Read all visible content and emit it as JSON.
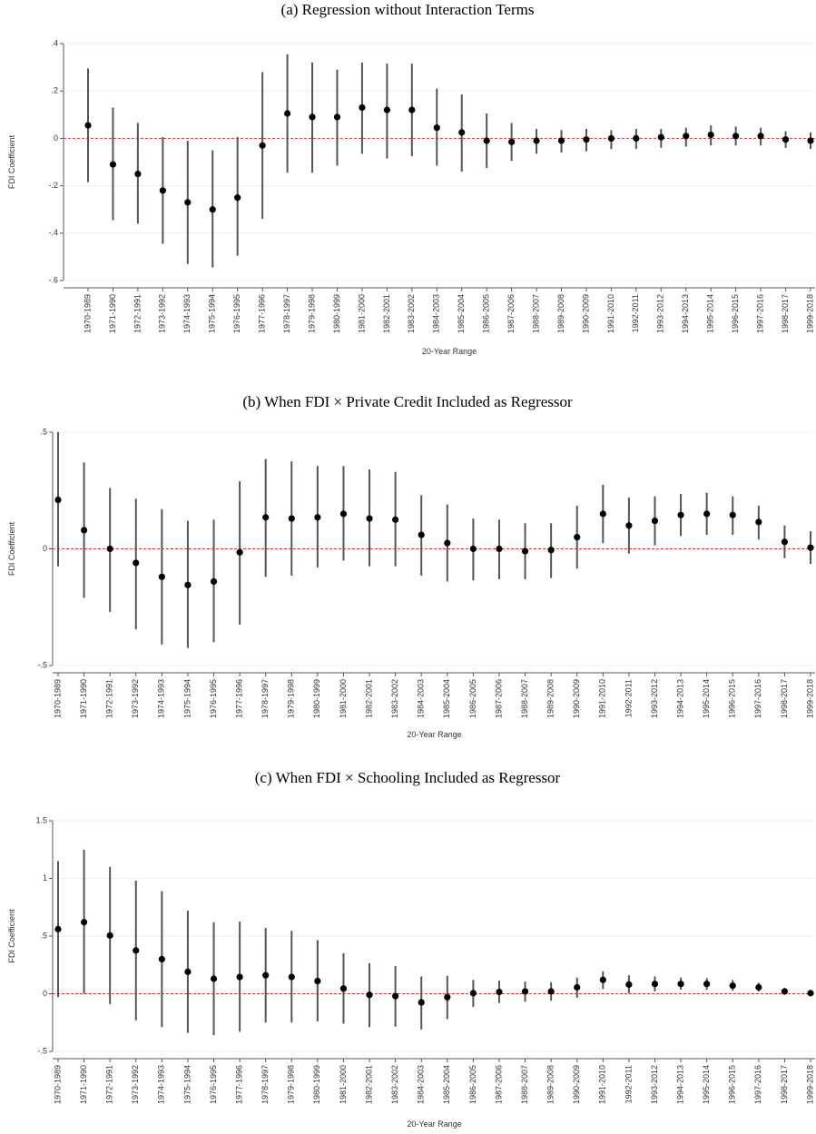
{
  "chart_data": [
    {
      "type": "errorbar",
      "title": "(a) Regression without Interaction Terms",
      "x_label": "20-Year Range",
      "y_label": "FDI Coefficient",
      "categories": [
        "1970-1989",
        "1971-1990",
        "1972-1991",
        "1973-1992",
        "1974-1993",
        "1975-1994",
        "1976-1995",
        "1977-1996",
        "1978-1997",
        "1979-1998",
        "1980-1999",
        "1981-2000",
        "1982-2001",
        "1983-2002",
        "1984-2003",
        "1985-2004",
        "1986-2005",
        "1987-2006",
        "1988-2007",
        "1989-2008",
        "1990-2009",
        "1991-2010",
        "1992-2011",
        "1993-2012",
        "1994-2013",
        "1995-2014",
        "1996-2015",
        "1997-2016",
        "1998-2017",
        "1999-2018"
      ],
      "values": [
        0.055,
        -0.11,
        -0.15,
        -0.22,
        -0.27,
        -0.3,
        -0.25,
        -0.03,
        0.105,
        0.09,
        0.09,
        0.13,
        0.12,
        0.12,
        0.045,
        0.025,
        -0.01,
        -0.015,
        -0.01,
        -0.01,
        -0.005,
        0,
        0,
        0.005,
        0.01,
        0.015,
        0.01,
        0.01,
        -0.005,
        -0.01
      ],
      "upper": [
        0.295,
        0.13,
        0.065,
        0.005,
        -0.01,
        -0.05,
        0.005,
        0.28,
        0.355,
        0.32,
        0.29,
        0.32,
        0.315,
        0.315,
        0.21,
        0.185,
        0.105,
        0.065,
        0.04,
        0.035,
        0.04,
        0.035,
        0.04,
        0.04,
        0.045,
        0.055,
        0.05,
        0.045,
        0.03,
        0.025
      ],
      "lower": [
        -0.185,
        -0.345,
        -0.36,
        -0.445,
        -0.53,
        -0.545,
        -0.495,
        -0.34,
        -0.145,
        -0.145,
        -0.115,
        -0.065,
        -0.085,
        -0.075,
        -0.115,
        -0.14,
        -0.125,
        -0.095,
        -0.065,
        -0.06,
        -0.055,
        -0.045,
        -0.045,
        -0.04,
        -0.035,
        -0.03,
        -0.03,
        -0.03,
        -0.04,
        -0.045
      ],
      "ylim": [
        -0.6,
        0.4
      ],
      "yticks": [
        {
          "value": 0.4,
          "label": ".4"
        },
        {
          "value": 0.2,
          "label": ".2"
        },
        0,
        {
          "value": -0.2,
          "label": "-.2"
        },
        {
          "value": -0.4,
          "label": "-.4"
        },
        {
          "value": -0.6,
          "label": "-.6"
        }
      ],
      "reference_line": 0,
      "color": "#000000",
      "bar_color": "#555555",
      "reference_color": "#e03030",
      "grid": true
    },
    {
      "type": "errorbar",
      "title": "(b) When FDI × Private Credit Included as Regressor",
      "x_label": "20-Year Range",
      "y_label": "FDI Coefficient",
      "categories": [
        "1970-1989",
        "1971-1990",
        "1972-1991",
        "1973-1992",
        "1974-1993",
        "1975-1994",
        "1976-1995",
        "1977-1996",
        "1978-1997",
        "1979-1998",
        "1980-1999",
        "1981-2000",
        "1982-2001",
        "1983-2002",
        "1984-2003",
        "1985-2004",
        "1986-2005",
        "1987-2006",
        "1988-2007",
        "1989-2008",
        "1990-2009",
        "1991-2010",
        "1992-2011",
        "1993-2012",
        "1994-2013",
        "1995-2014",
        "1996-2015",
        "1997-2016",
        "1998-2017",
        "1999-2018"
      ],
      "values": [
        0.21,
        0.08,
        0,
        -0.06,
        -0.12,
        -0.155,
        -0.14,
        -0.015,
        0.135,
        0.13,
        0.135,
        0.15,
        0.13,
        0.125,
        0.06,
        0.025,
        0,
        0,
        -0.01,
        -0.005,
        0.05,
        0.15,
        0.1,
        0.12,
        0.145,
        0.15,
        0.145,
        0.115,
        0.03,
        0.005
      ],
      "upper": [
        0.5,
        0.37,
        0.26,
        0.215,
        0.17,
        0.12,
        0.125,
        0.29,
        0.385,
        0.375,
        0.355,
        0.355,
        0.34,
        0.33,
        0.23,
        0.19,
        0.13,
        0.125,
        0.11,
        0.11,
        0.185,
        0.275,
        0.22,
        0.225,
        0.235,
        0.24,
        0.225,
        0.185,
        0.1,
        0.075
      ],
      "lower": [
        -0.075,
        -0.21,
        -0.27,
        -0.345,
        -0.41,
        -0.425,
        -0.4,
        -0.325,
        -0.12,
        -0.115,
        -0.08,
        -0.05,
        -0.075,
        -0.075,
        -0.115,
        -0.14,
        -0.135,
        -0.13,
        -0.13,
        -0.125,
        -0.085,
        0.025,
        -0.02,
        0.015,
        0.055,
        0.06,
        0.06,
        0.04,
        -0.04,
        -0.065
      ],
      "ylim": [
        -0.5,
        0.5
      ],
      "yticks": [
        {
          "value": 0.5,
          "label": ".5"
        },
        0,
        {
          "value": -0.5,
          "label": "-.5"
        }
      ],
      "reference_line": 0,
      "color": "#000000",
      "bar_color": "#555555",
      "reference_color": "#e03030",
      "grid": true
    },
    {
      "type": "errorbar",
      "title": "(c) When FDI × Schooling Included as Regressor",
      "x_label": "20-Year Range",
      "y_label": "FDI Coefficient",
      "categories": [
        "1970-1989",
        "1971-1990",
        "1972-1991",
        "1973-1992",
        "1974-1993",
        "1975-1994",
        "1976-1995",
        "1977-1996",
        "1978-1997",
        "1979-1998",
        "1980-1999",
        "1981-2000",
        "1982-2001",
        "1983-2002",
        "1984-2003",
        "1985-2004",
        "1986-2005",
        "1987-2006",
        "1988-2007",
        "1989-2008",
        "1990-2009",
        "1991-2010",
        "1992-2011",
        "1993-2012",
        "1994-2013",
        "1995-2014",
        "1996-2015",
        "1997-2016",
        "1998-2017",
        "1999-2018"
      ],
      "values": [
        0.56,
        0.62,
        0.505,
        0.375,
        0.3,
        0.19,
        0.13,
        0.145,
        0.16,
        0.145,
        0.11,
        0.045,
        -0.01,
        -0.02,
        -0.075,
        -0.03,
        0.005,
        0.015,
        0.02,
        0.02,
        0.055,
        0.12,
        0.08,
        0.085,
        0.085,
        0.085,
        0.07,
        0.055,
        0.02,
        0.005
      ],
      "upper": [
        1.15,
        1.25,
        1.1,
        0.98,
        0.89,
        0.72,
        0.62,
        0.625,
        0.57,
        0.545,
        0.465,
        0.35,
        0.265,
        0.24,
        0.15,
        0.155,
        0.12,
        0.115,
        0.105,
        0.1,
        0.14,
        0.195,
        0.16,
        0.15,
        0.14,
        0.135,
        0.12,
        0.095,
        0.05,
        0.03
      ],
      "lower": [
        -0.03,
        0,
        -0.09,
        -0.23,
        -0.29,
        -0.34,
        -0.36,
        -0.33,
        -0.25,
        -0.25,
        -0.24,
        -0.26,
        -0.29,
        -0.285,
        -0.31,
        -0.22,
        -0.115,
        -0.08,
        -0.07,
        -0.06,
        -0.035,
        0.04,
        0.005,
        0.02,
        0.035,
        0.035,
        0.025,
        0.02,
        -0.01,
        -0.02
      ],
      "ylim": [
        -0.5,
        1.5
      ],
      "yticks": [
        1.5,
        1,
        {
          "value": 0.5,
          "label": ".5"
        },
        0,
        {
          "value": -0.5,
          "label": "-.5"
        }
      ],
      "reference_line": 0,
      "color": "#000000",
      "bar_color": "#555555",
      "reference_color": "#e03030",
      "grid": true
    }
  ]
}
